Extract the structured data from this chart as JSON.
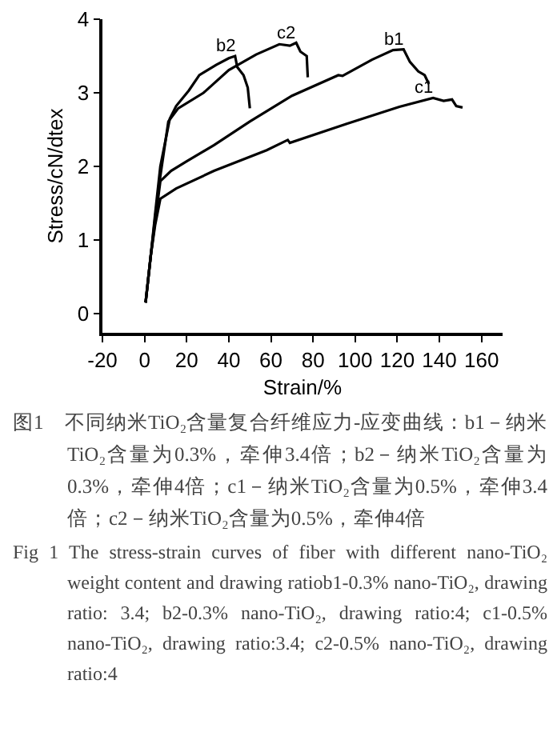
{
  "chart_data": {
    "type": "line",
    "xlabel": "Strain/%",
    "ylabel": "Stress/cN/dtex",
    "xlim": [
      -20,
      170
    ],
    "xticks": [
      -20,
      0,
      20,
      40,
      60,
      80,
      100,
      120,
      140,
      160
    ],
    "ylim": [
      -0.26,
      4
    ],
    "yticks": [
      0,
      1,
      2,
      3,
      4
    ],
    "grid": false,
    "legend": false,
    "marker": "none",
    "line_style": "solid",
    "series": [
      {
        "name": "b2",
        "color": "#000000",
        "x": [
          0.5,
          3,
          5,
          7.5,
          12,
          15,
          21,
          26,
          34,
          40,
          43,
          44,
          47,
          49,
          50
        ],
        "values": [
          0.15,
          0.8,
          1.35,
          2.0,
          2.65,
          2.82,
          3.03,
          3.24,
          3.38,
          3.47,
          3.5,
          3.35,
          3.24,
          3.07,
          2.79
        ]
      },
      {
        "name": "c2",
        "color": "#000000",
        "x": [
          0.5,
          3,
          5,
          7.5,
          11.3,
          16,
          28,
          40,
          53,
          64,
          69,
          72,
          74,
          77,
          77.5
        ],
        "values": [
          0.15,
          0.8,
          1.3,
          1.87,
          2.61,
          2.79,
          3.0,
          3.31,
          3.52,
          3.66,
          3.64,
          3.68,
          3.56,
          3.5,
          3.21
        ]
      },
      {
        "name": "b1",
        "color": "#000000",
        "x": [
          0.5,
          3,
          5,
          7.5,
          12.6,
          20,
          33,
          50,
          70,
          92,
          94,
          108,
          118,
          123,
          126,
          130,
          133,
          135
        ],
        "values": [
          0.15,
          0.8,
          1.25,
          1.8,
          1.94,
          2.07,
          2.29,
          2.61,
          2.96,
          3.24,
          3.23,
          3.45,
          3.58,
          3.59,
          3.42,
          3.29,
          3.24,
          3.12
        ]
      },
      {
        "name": "c1",
        "color": "#000000",
        "x": [
          0.5,
          3,
          5,
          7.5,
          15,
          33,
          58,
          68,
          69,
          96,
          121,
          137,
          142,
          146,
          148,
          151
        ],
        "values": [
          0.15,
          0.8,
          1.2,
          1.56,
          1.7,
          1.94,
          2.22,
          2.36,
          2.32,
          2.58,
          2.81,
          2.93,
          2.89,
          2.91,
          2.82,
          2.8
        ]
      }
    ],
    "annotations": [
      "图1　不同纳米TiO₂含量复合纤维应力-应变曲线：b1－纳米TiO₂含量为0.3%，牵伸3.4倍；b2－纳米TiO₂含量为0.3%，牵伸4倍；c1－纳米TiO₂含量为0.5%，牵伸3.4倍；c2－纳米TiO₂含量为0.5%，牵伸4倍",
      "Fig 1 The stress-strain curves of fiber with different nano-TiO₂ weight content and drawing ratiob1-0.3% nano-TiO₂, drawing ratio: 3.4; b2-0.3% nano-TiO₂, drawing ratio:4; c1-0.5% nano-TiO₂, drawing ratio:3.4; c2-0.5% nano-TiO₂, drawing ratio:4"
    ]
  }
}
